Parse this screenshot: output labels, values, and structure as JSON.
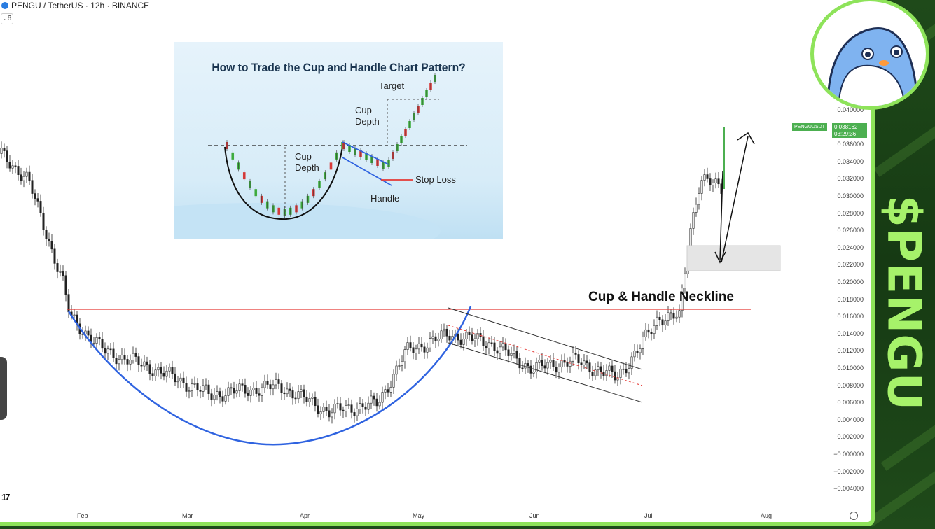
{
  "header": {
    "title": "PENGU / TetherUS · 12h · BINANCE",
    "interval_badge": "6"
  },
  "yaxis": {
    "labels": [
      "0.040000",
      "0.038000",
      "0.036000",
      "0.034000",
      "0.032000",
      "0.030000",
      "0.028000",
      "0.026000",
      "0.024000",
      "0.022000",
      "0.020000",
      "0.018000",
      "0.016000",
      "0.014000",
      "0.012000",
      "0.010000",
      "0.008000",
      "0.006000",
      "0.004000",
      "0.002000",
      "−0.000000",
      "−0.002000",
      "−0.004000"
    ]
  },
  "xaxis": {
    "labels": [
      "Feb",
      "Mar",
      "Apr",
      "May",
      "Jun",
      "Jul",
      "Aug"
    ]
  },
  "price_tag": {
    "symbol": "PENGUUSDT",
    "price": "0.038162",
    "countdown": "03:29:36"
  },
  "annotations": {
    "neckline": "Cup & Handle Neckline"
  },
  "inset": {
    "title": "How to Trade the Cup and Handle Chart Pattern?",
    "target": "Target",
    "cup_depth_right": "Cup\nDepth",
    "cup_depth_left": "Cup\nDepth",
    "stop_loss": "Stop Loss",
    "handle": "Handle"
  },
  "brand": {
    "ticker": "$PENGU"
  },
  "colors": {
    "neckline": "#e53935",
    "cup_curve": "#2f63e0",
    "accent_green": "#8ee35a",
    "price_up": "#4caf50",
    "sidebar_bg": "#1d4a1a"
  },
  "chart_data": {
    "type": "candlestick",
    "title": "PENGU / TetherUS · 12h · BINANCE",
    "x_labels": [
      "Feb",
      "Mar",
      "Apr",
      "May",
      "Jun",
      "Jul",
      "Aug"
    ],
    "ylim": [
      -0.004,
      0.04
    ],
    "last_price": 0.038162,
    "neckline": 0.017,
    "approx_close_path": [
      {
        "x": "Jan",
        "y": 0.036
      },
      {
        "x": "Feb",
        "y": 0.016
      },
      {
        "x": "Mar",
        "y": 0.008
      },
      {
        "x": "Apr",
        "y": 0.004
      },
      {
        "x": "May",
        "y": 0.014
      },
      {
        "x": "Jun",
        "y": 0.009
      },
      {
        "x": "Jul",
        "y": 0.031
      },
      {
        "x": "Jul",
        "y": 0.038
      }
    ]
  }
}
